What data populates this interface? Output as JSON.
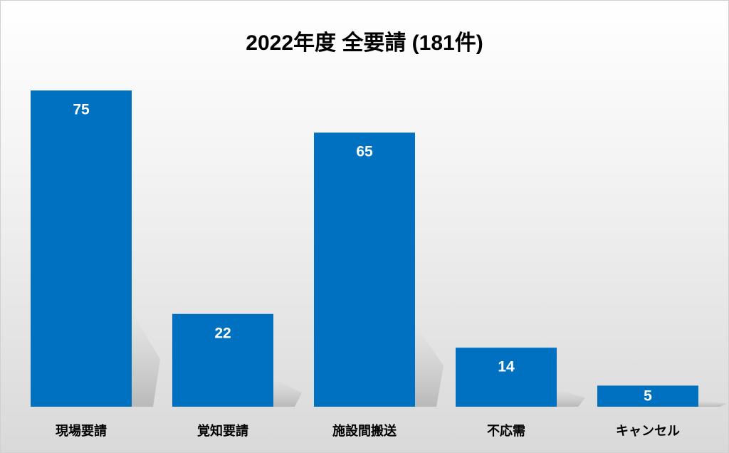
{
  "chart_data": {
    "type": "bar",
    "title": "2022年度 全要請 (181件)",
    "categories": [
      "現場要請",
      "覚知要請",
      "施設間搬送",
      "不応需",
      "キャンセル"
    ],
    "values": [
      75,
      22,
      65,
      14,
      5
    ],
    "color": "#0070c0"
  }
}
